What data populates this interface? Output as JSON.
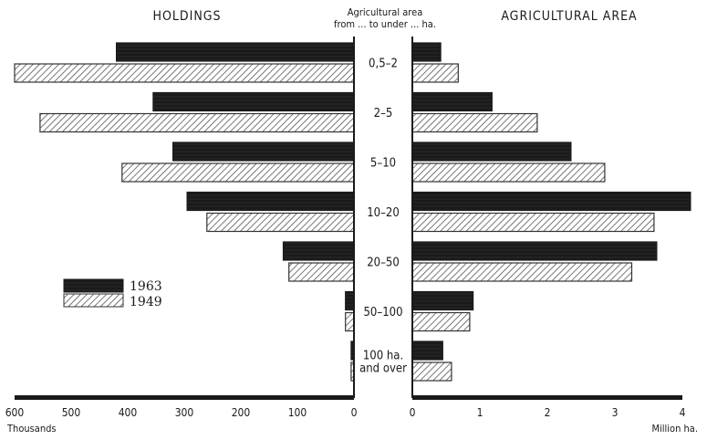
{
  "chart_data": {
    "type": "bar",
    "orientation": "horizontal",
    "layout": "back-to-back",
    "center_header": [
      "Agricultural area",
      "from ... to under ... ha."
    ],
    "categories": [
      [
        "0,5–2"
      ],
      [
        "2–5"
      ],
      [
        "5–10"
      ],
      [
        "10–20"
      ],
      [
        "20–50"
      ],
      [
        "50–100"
      ],
      [
        "100 ha.",
        "and over"
      ]
    ],
    "series": [
      {
        "name": "1963",
        "pattern": "solid",
        "color": "#1a1a1a"
      },
      {
        "name": "1949",
        "pattern": "hatched",
        "color": "#555555"
      }
    ],
    "panels": [
      {
        "id": "holdings",
        "title": "HOLDINGS",
        "direction": "left",
        "xlim": [
          0,
          600
        ],
        "ticks": [
          "600",
          "500",
          "400",
          "300",
          "200",
          "100",
          "0"
        ],
        "tick_values": [
          600,
          500,
          400,
          300,
          200,
          100,
          0
        ],
        "unit": "Thousands",
        "values": {
          "1963": [
            420,
            355,
            320,
            295,
            125,
            15,
            5
          ],
          "1949": [
            600,
            555,
            410,
            260,
            115,
            15,
            5
          ]
        }
      },
      {
        "id": "area",
        "title": "AGRICULTURAL AREA",
        "direction": "right",
        "xlim": [
          0,
          4
        ],
        "ticks": [
          "0",
          "1",
          "2",
          "3",
          "4"
        ],
        "tick_values": [
          0,
          1,
          2,
          3,
          4
        ],
        "unit": "Million ha.",
        "values": {
          "1963": [
            0.42,
            1.18,
            2.35,
            4.12,
            3.62,
            0.9,
            0.45
          ],
          "1949": [
            0.68,
            1.85,
            2.85,
            3.58,
            3.25,
            0.85,
            0.58
          ]
        }
      }
    ],
    "legend": {
      "placement": "left-middle"
    }
  }
}
